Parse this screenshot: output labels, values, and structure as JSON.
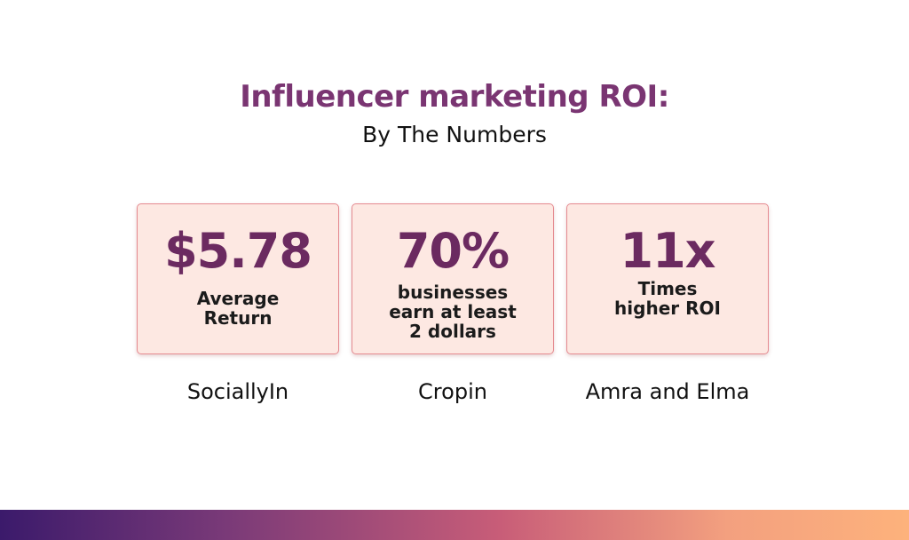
{
  "header": {
    "title": "Influencer marketing ROI:",
    "subtitle": "By The Numbers"
  },
  "cards": [
    {
      "stat": "$5.78",
      "description": "Average Return",
      "source": "SociallyIn"
    },
    {
      "stat": "70%",
      "description": "businesses earn at least 2 dollars",
      "source": "Cropin"
    },
    {
      "stat": "11x",
      "description": "Times higher ROI",
      "source": "Amra and Elma"
    }
  ],
  "colors": {
    "title": "#7a3572",
    "card_background": "#fde8e2",
    "card_border": "#e58a90",
    "stat_text": "#6b2a60",
    "gradient_start": "#3b1a6b",
    "gradient_end": "#fdb27c"
  }
}
